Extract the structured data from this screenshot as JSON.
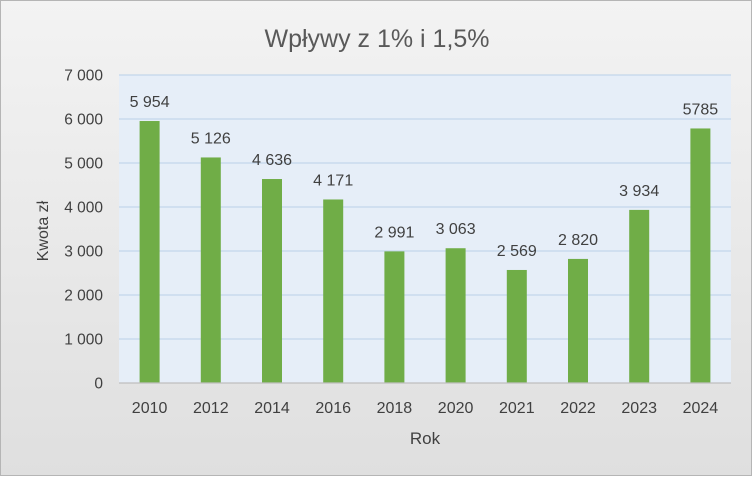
{
  "chart_data": {
    "type": "bar",
    "title": "Wpływy z 1% i 1,5%",
    "xlabel": "Rok",
    "ylabel": "Kwota zł",
    "categories": [
      "2010",
      "2012",
      "2014",
      "2016",
      "2018",
      "2020",
      "2021",
      "2022",
      "2023",
      "2024"
    ],
    "values": [
      5954,
      5126,
      4636,
      4171,
      2991,
      3063,
      2569,
      2820,
      3934,
      5785
    ],
    "data_labels": [
      "5 954",
      "5 126",
      "4 636",
      "4 171",
      "2 991",
      "3 063",
      "2 569",
      "2 820",
      "3 934",
      "5785"
    ],
    "ylim": [
      0,
      7000
    ],
    "yticks": [
      0,
      1000,
      2000,
      3000,
      4000,
      5000,
      6000,
      7000
    ],
    "ytick_labels": [
      "0",
      "1 000",
      "2 000",
      "3 000",
      "4 000",
      "5 000",
      "6 000",
      "7 000"
    ],
    "grid": true,
    "legend": "none",
    "colors": {
      "bar": "#70AD47",
      "plot_background": "#E6EEF8",
      "gridline": "#C3D6EA",
      "text": "#404040",
      "title": "#595959"
    }
  }
}
